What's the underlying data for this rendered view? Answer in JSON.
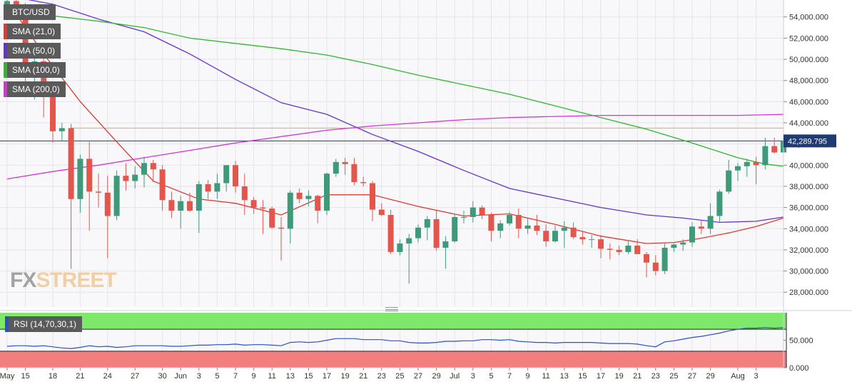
{
  "chart_data": [
    {
      "type": "candlestick",
      "symbol": "BTC/USD",
      "current_price_label": "42,289.795",
      "ylim": [
        26600,
        55600
      ],
      "y_ticks": [
        28000,
        30000,
        32000,
        34000,
        36000,
        38000,
        40000,
        42000,
        44000,
        46000,
        48000,
        50000,
        52000,
        54000
      ],
      "y_tick_labels": [
        "28,000.000",
        "30,000.000",
        "32,000.000",
        "34,000.000",
        "36,000.000",
        "38,000.000",
        "40,000.000",
        "42,000.000",
        "44,000.000",
        "46,000.000",
        "48,000.000",
        "50,000.000",
        "52,000.000",
        "54,000.000"
      ],
      "x_ticks": [
        {
          "label": "May",
          "day": 0
        },
        {
          "label": "15",
          "day": 2
        },
        {
          "label": "18",
          "day": 5
        },
        {
          "label": "21",
          "day": 8
        },
        {
          "label": "24",
          "day": 11
        },
        {
          "label": "27",
          "day": 14
        },
        {
          "label": "30",
          "day": 17
        },
        {
          "label": "Jun",
          "day": 19
        },
        {
          "label": "3",
          "day": 21
        },
        {
          "label": "5",
          "day": 23
        },
        {
          "label": "7",
          "day": 25
        },
        {
          "label": "9",
          "day": 27
        },
        {
          "label": "11",
          "day": 29
        },
        {
          "label": "13",
          "day": 31
        },
        {
          "label": "15",
          "day": 33
        },
        {
          "label": "17",
          "day": 35
        },
        {
          "label": "19",
          "day": 37
        },
        {
          "label": "21",
          "day": 39
        },
        {
          "label": "23",
          "day": 41
        },
        {
          "label": "25",
          "day": 43
        },
        {
          "label": "27",
          "day": 45
        },
        {
          "label": "29",
          "day": 47
        },
        {
          "label": "Jul",
          "day": 49
        },
        {
          "label": "3",
          "day": 51
        },
        {
          "label": "5",
          "day": 53
        },
        {
          "label": "7",
          "day": 55
        },
        {
          "label": "9",
          "day": 57
        },
        {
          "label": "11",
          "day": 59
        },
        {
          "label": "13",
          "day": 61
        },
        {
          "label": "15",
          "day": 63
        },
        {
          "label": "17",
          "day": 65
        },
        {
          "label": "19",
          "day": 67
        },
        {
          "label": "21",
          "day": 69
        },
        {
          "label": "23",
          "day": 71
        },
        {
          "label": "25",
          "day": 73
        },
        {
          "label": "27",
          "day": 75
        },
        {
          "label": "29",
          "day": 77
        },
        {
          "label": "Aug",
          "day": 80
        },
        {
          "label": "3",
          "day": 82
        }
      ],
      "horizontal_levels": [
        {
          "value": 43500,
          "color": "#f5a623"
        },
        {
          "value": 42290,
          "color": "#1f3b73"
        }
      ],
      "candles_ohlc": [
        [
          0,
          55000,
          56000,
          54000,
          55500
        ],
        [
          1,
          55500,
          56400,
          53800,
          54200
        ],
        [
          2,
          54200,
          55300,
          47000,
          48500
        ],
        [
          3,
          48500,
          50500,
          46200,
          49800
        ],
        [
          4,
          49800,
          50200,
          44500,
          46500
        ],
        [
          5,
          46500,
          46800,
          42100,
          43200
        ],
        [
          6,
          43200,
          44000,
          42300,
          43500
        ],
        [
          7,
          43500,
          43900,
          30200,
          36800
        ],
        [
          8,
          36800,
          41000,
          35500,
          40600
        ],
        [
          9,
          40600,
          42200,
          33800,
          37500
        ],
        [
          10,
          37500,
          39200,
          36000,
          37400
        ],
        [
          11,
          37400,
          39000,
          31200,
          35200
        ],
        [
          12,
          35200,
          39500,
          34800,
          39000
        ],
        [
          13,
          39000,
          40200,
          37600,
          38500
        ],
        [
          14,
          38500,
          39900,
          37800,
          39100
        ],
        [
          15,
          39100,
          40800,
          37900,
          40200
        ],
        [
          16,
          40200,
          40500,
          38400,
          39600
        ],
        [
          17,
          39600,
          40000,
          35700,
          36700
        ],
        [
          18,
          36700,
          37500,
          35000,
          35700
        ],
        [
          19,
          35700,
          37100,
          34000,
          36600
        ],
        [
          20,
          36600,
          37400,
          35600,
          35700
        ],
        [
          21,
          35700,
          38500,
          33600,
          38200
        ],
        [
          22,
          38200,
          38600,
          36800,
          37500
        ],
        [
          23,
          37500,
          39200,
          36800,
          38300
        ],
        [
          24,
          38300,
          40000,
          37500,
          40000
        ],
        [
          25,
          40000,
          40400,
          37400,
          38000
        ],
        [
          26,
          38000,
          39200,
          35300,
          36700
        ],
        [
          27,
          36700,
          37000,
          35400,
          36000
        ],
        [
          28,
          36000,
          36700,
          33500,
          35900
        ],
        [
          29,
          35900,
          36100,
          34000,
          34100
        ],
        [
          30,
          34100,
          35100,
          31000,
          34000
        ],
        [
          31,
          34000,
          37600,
          32600,
          37400
        ],
        [
          32,
          37400,
          37800,
          36400,
          36800
        ],
        [
          33,
          36800,
          37600,
          36100,
          37100
        ],
        [
          34,
          37100,
          37200,
          34500,
          35700
        ],
        [
          35,
          35700,
          39300,
          35300,
          39200
        ],
        [
          36,
          39200,
          40600,
          38900,
          40300
        ],
        [
          37,
          40300,
          40700,
          39100,
          40100
        ],
        [
          38,
          40100,
          40700,
          38100,
          38400
        ],
        [
          39,
          38400,
          38900,
          38000,
          38300
        ],
        [
          40,
          38300,
          38500,
          34700,
          35800
        ],
        [
          41,
          35800,
          36400,
          35200,
          35300
        ],
        [
          42,
          35300,
          35800,
          31600,
          31800
        ],
        [
          43,
          31800,
          33000,
          31500,
          32600
        ],
        [
          44,
          32600,
          33500,
          28800,
          33100
        ],
        [
          45,
          33100,
          34400,
          32700,
          34100
        ],
        [
          46,
          34100,
          35200,
          32900,
          34900
        ],
        [
          47,
          34900,
          35700,
          31900,
          32200
        ],
        [
          48,
          32200,
          33300,
          30200,
          32800
        ],
        [
          49,
          32800,
          35400,
          32700,
          35100
        ],
        [
          50,
          35100,
          35700,
          34500,
          35100
        ],
        [
          51,
          35100,
          36600,
          34600,
          36000
        ],
        [
          52,
          36000,
          36200,
          34900,
          35300
        ],
        [
          53,
          35300,
          35500,
          32800,
          33800
        ],
        [
          54,
          33800,
          34800,
          33100,
          34500
        ],
        [
          55,
          34500,
          35600,
          34300,
          35300
        ],
        [
          56,
          35300,
          35900,
          33100,
          34000
        ],
        [
          57,
          34000,
          35000,
          33500,
          34300
        ],
        [
          58,
          34300,
          35300,
          33400,
          33800
        ],
        [
          59,
          33800,
          34400,
          32300,
          32800
        ],
        [
          60,
          32800,
          34300,
          32700,
          33800
        ],
        [
          61,
          33800,
          34700,
          32200,
          34100
        ],
        [
          62,
          34100,
          34600,
          33000,
          33200
        ],
        [
          63,
          33200,
          33800,
          32500,
          33000
        ],
        [
          64,
          33000,
          33400,
          32200,
          33000
        ],
        [
          65,
          33000,
          33400,
          31200,
          32100
        ],
        [
          66,
          32100,
          32600,
          31100,
          32000
        ],
        [
          67,
          32000,
          32400,
          31500,
          31800
        ],
        [
          68,
          31800,
          32800,
          31600,
          32400
        ],
        [
          69,
          32400,
          33000,
          31700,
          31600
        ],
        [
          70,
          31600,
          31800,
          29400,
          30800
        ],
        [
          71,
          30800,
          31500,
          29600,
          30000
        ],
        [
          72,
          30000,
          32700,
          29700,
          32200
        ],
        [
          73,
          32200,
          32600,
          31800,
          32500
        ],
        [
          74,
          32500,
          33000,
          31900,
          32700
        ],
        [
          75,
          32700,
          34600,
          32300,
          34200
        ],
        [
          76,
          34200,
          34800,
          33500,
          34000
        ],
        [
          77,
          34000,
          36400,
          33500,
          35200
        ],
        [
          78,
          35200,
          37700,
          34600,
          37500
        ],
        [
          79,
          37500,
          40500,
          37300,
          39500
        ],
        [
          80,
          39500,
          40200,
          38500,
          39900
        ],
        [
          81,
          39900,
          40600,
          38900,
          40300
        ],
        [
          82,
          40300,
          40800,
          38200,
          40000
        ],
        [
          83,
          40000,
          42600,
          39600,
          41800
        ],
        [
          84,
          41800,
          42600,
          41100,
          41200
        ],
        [
          85,
          41200,
          42700,
          41000,
          42290
        ]
      ],
      "series": [
        {
          "name": "SMA (21,0)",
          "color": "#e03a2d",
          "points": [
            [
              0,
              55500
            ],
            [
              4,
              50500
            ],
            [
              8,
              46000
            ],
            [
              12,
              42200
            ],
            [
              16,
              38500
            ],
            [
              21,
              36800
            ],
            [
              25,
              36400
            ],
            [
              30,
              35300
            ],
            [
              35,
              37200
            ],
            [
              40,
              37200
            ],
            [
              45,
              36100
            ],
            [
              50,
              35200
            ],
            [
              55,
              35400
            ],
            [
              60,
              34400
            ],
            [
              65,
              33300
            ],
            [
              70,
              32600
            ],
            [
              73,
              32700
            ],
            [
              76,
              33100
            ],
            [
              79,
              33600
            ],
            [
              82,
              34200
            ],
            [
              85,
              35000
            ]
          ]
        },
        {
          "name": "SMA (50,0)",
          "color": "#6633cc",
          "points": [
            [
              0,
              56000
            ],
            [
              5,
              55200
            ],
            [
              10,
              53800
            ],
            [
              15,
              52600
            ],
            [
              20,
              50500
            ],
            [
              25,
              48100
            ],
            [
              30,
              45900
            ],
            [
              35,
              44800
            ],
            [
              40,
              42900
            ],
            [
              45,
              41300
            ],
            [
              50,
              39500
            ],
            [
              55,
              37800
            ],
            [
              60,
              36900
            ],
            [
              65,
              36000
            ],
            [
              70,
              35300
            ],
            [
              74,
              35000
            ],
            [
              78,
              34600
            ],
            [
              82,
              34700
            ],
            [
              85,
              35100
            ]
          ]
        },
        {
          "name": "SMA (100,0)",
          "color": "#2eb82e",
          "points": [
            [
              0,
              54400
            ],
            [
              5,
              54100
            ],
            [
              10,
              53600
            ],
            [
              15,
              53000
            ],
            [
              20,
              52000
            ],
            [
              25,
              51500
            ],
            [
              30,
              51000
            ],
            [
              35,
              50400
            ],
            [
              40,
              49500
            ],
            [
              45,
              48500
            ],
            [
              50,
              47600
            ],
            [
              55,
              46700
            ],
            [
              60,
              45600
            ],
            [
              65,
              44500
            ],
            [
              70,
              43400
            ],
            [
              75,
              42100
            ],
            [
              80,
              40700
            ],
            [
              83,
              40100
            ],
            [
              85,
              39900
            ]
          ]
        },
        {
          "name": "SMA (200,0)",
          "color": "#d633d6",
          "points": [
            [
              0,
              38700
            ],
            [
              5,
              39400
            ],
            [
              10,
              40000
            ],
            [
              15,
              40700
            ],
            [
              20,
              41400
            ],
            [
              25,
              42100
            ],
            [
              30,
              42700
            ],
            [
              35,
              43300
            ],
            [
              40,
              43700
            ],
            [
              45,
              44000
            ],
            [
              50,
              44300
            ],
            [
              55,
              44500
            ],
            [
              60,
              44600
            ],
            [
              65,
              44700
            ],
            [
              70,
              44700
            ],
            [
              75,
              44700
            ],
            [
              80,
              44700
            ],
            [
              85,
              44800
            ]
          ]
        }
      ]
    },
    {
      "type": "line",
      "name": "RSI (14,70,30,1)",
      "ylim": [
        0,
        100
      ],
      "y_ticks": [
        0,
        50
      ],
      "y_tick_labels": [
        "0.000",
        "50.000"
      ],
      "overbought": 70,
      "oversold": 30,
      "values": [
        39,
        40,
        40,
        39,
        40,
        38,
        36,
        35,
        37,
        40,
        38,
        39,
        37,
        38,
        40,
        40,
        40,
        40,
        39,
        39,
        40,
        41,
        41,
        42,
        42,
        43,
        41,
        42,
        42,
        41,
        40,
        46,
        47,
        46,
        47,
        50,
        53,
        53,
        53,
        51,
        51,
        51,
        49,
        49,
        46,
        45,
        45,
        46,
        48,
        48,
        49,
        49,
        51,
        51,
        50,
        51,
        48,
        47,
        46,
        46,
        45,
        46,
        46,
        46,
        46,
        45,
        44,
        44,
        44,
        43,
        40,
        38,
        47,
        49,
        52,
        55,
        57,
        60,
        63,
        67,
        70,
        72,
        72,
        73,
        72,
        73
      ]
    }
  ],
  "legend": [
    {
      "label": "BTC/USD",
      "color": "#5a5a5a"
    },
    {
      "label": "SMA (21,0)",
      "color": "#e03a2d"
    },
    {
      "label": "SMA (50,0)",
      "color": "#6633cc"
    },
    {
      "label": "SMA (100,0)",
      "color": "#2eb82e"
    },
    {
      "label": "SMA (200,0)",
      "color": "#d633d6"
    }
  ],
  "rsi_legend": {
    "label": "RSI (14,70,30,1)"
  },
  "logo": {
    "fx": "FX",
    "street": "STREET"
  },
  "colors": {
    "up": "#3f9a7a",
    "down": "#e2564b",
    "rsi_line": "#2a50c8",
    "rsi_upper_zone": "#7de86a",
    "rsi_lower_zone": "#f27e7e"
  }
}
